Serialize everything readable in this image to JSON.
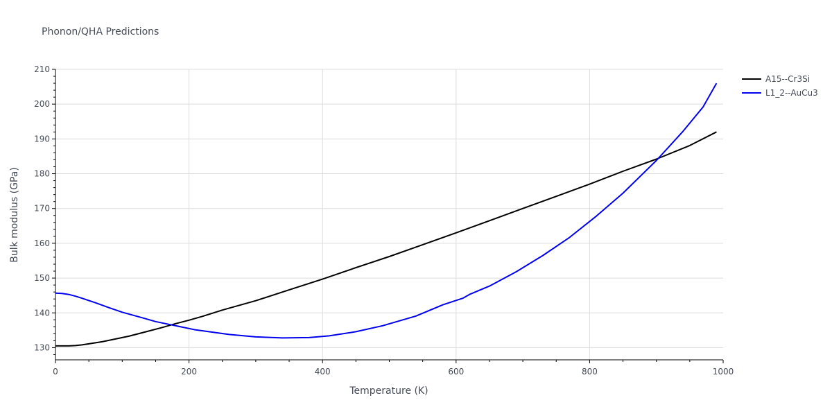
{
  "chart_data": {
    "type": "line",
    "title": "Phonon/QHA Predictions",
    "xlabel": "Temperature (K)",
    "ylabel": "Bulk modulus (GPa)",
    "xlim": [
      0,
      1000
    ],
    "ylim": [
      126.5,
      210
    ],
    "x_ticks": [
      0,
      200,
      400,
      600,
      800,
      1000
    ],
    "y_ticks": [
      130,
      140,
      150,
      160,
      170,
      180,
      190,
      200,
      210
    ],
    "grid": true,
    "legend_position": "top-right",
    "series": [
      {
        "name": "A15--Cr3Si",
        "color": "#000000",
        "x": [
          0,
          10,
          20,
          30,
          40,
          50,
          60,
          70,
          80,
          90,
          100,
          110,
          120,
          140,
          160,
          180,
          200,
          220,
          250,
          300,
          350,
          400,
          450,
          500,
          550,
          600,
          650,
          700,
          750,
          800,
          850,
          900,
          950,
          990
        ],
        "y": [
          130.5,
          130.5,
          130.5,
          130.6,
          130.8,
          131.1,
          131.4,
          131.7,
          132.1,
          132.5,
          132.9,
          133.3,
          133.8,
          134.8,
          135.8,
          136.9,
          137.9,
          139.0,
          140.8,
          143.5,
          146.6,
          149.7,
          153.0,
          156.2,
          159.6,
          163.0,
          166.5,
          170.0,
          173.5,
          177.0,
          180.7,
          184.2,
          188.1,
          192.0
        ]
      },
      {
        "name": "L1_2--AuCu3",
        "color": "#0000ee",
        "x": [
          0,
          10,
          20,
          30,
          40,
          60,
          80,
          100,
          130,
          150,
          180,
          210,
          260,
          300,
          340,
          380,
          410,
          450,
          490,
          540,
          580,
          610,
          620,
          650,
          690,
          730,
          770,
          810,
          850,
          900,
          940,
          970,
          990
        ],
        "y": [
          145.7,
          145.6,
          145.3,
          144.8,
          144.2,
          142.9,
          141.5,
          140.2,
          138.6,
          137.5,
          136.3,
          135.1,
          133.8,
          133.1,
          132.8,
          132.9,
          133.4,
          134.6,
          136.3,
          139.1,
          142.3,
          144.2,
          145.3,
          147.7,
          151.8,
          156.5,
          161.7,
          167.8,
          174.4,
          183.8,
          192.2,
          199.2,
          206.0
        ]
      }
    ]
  }
}
